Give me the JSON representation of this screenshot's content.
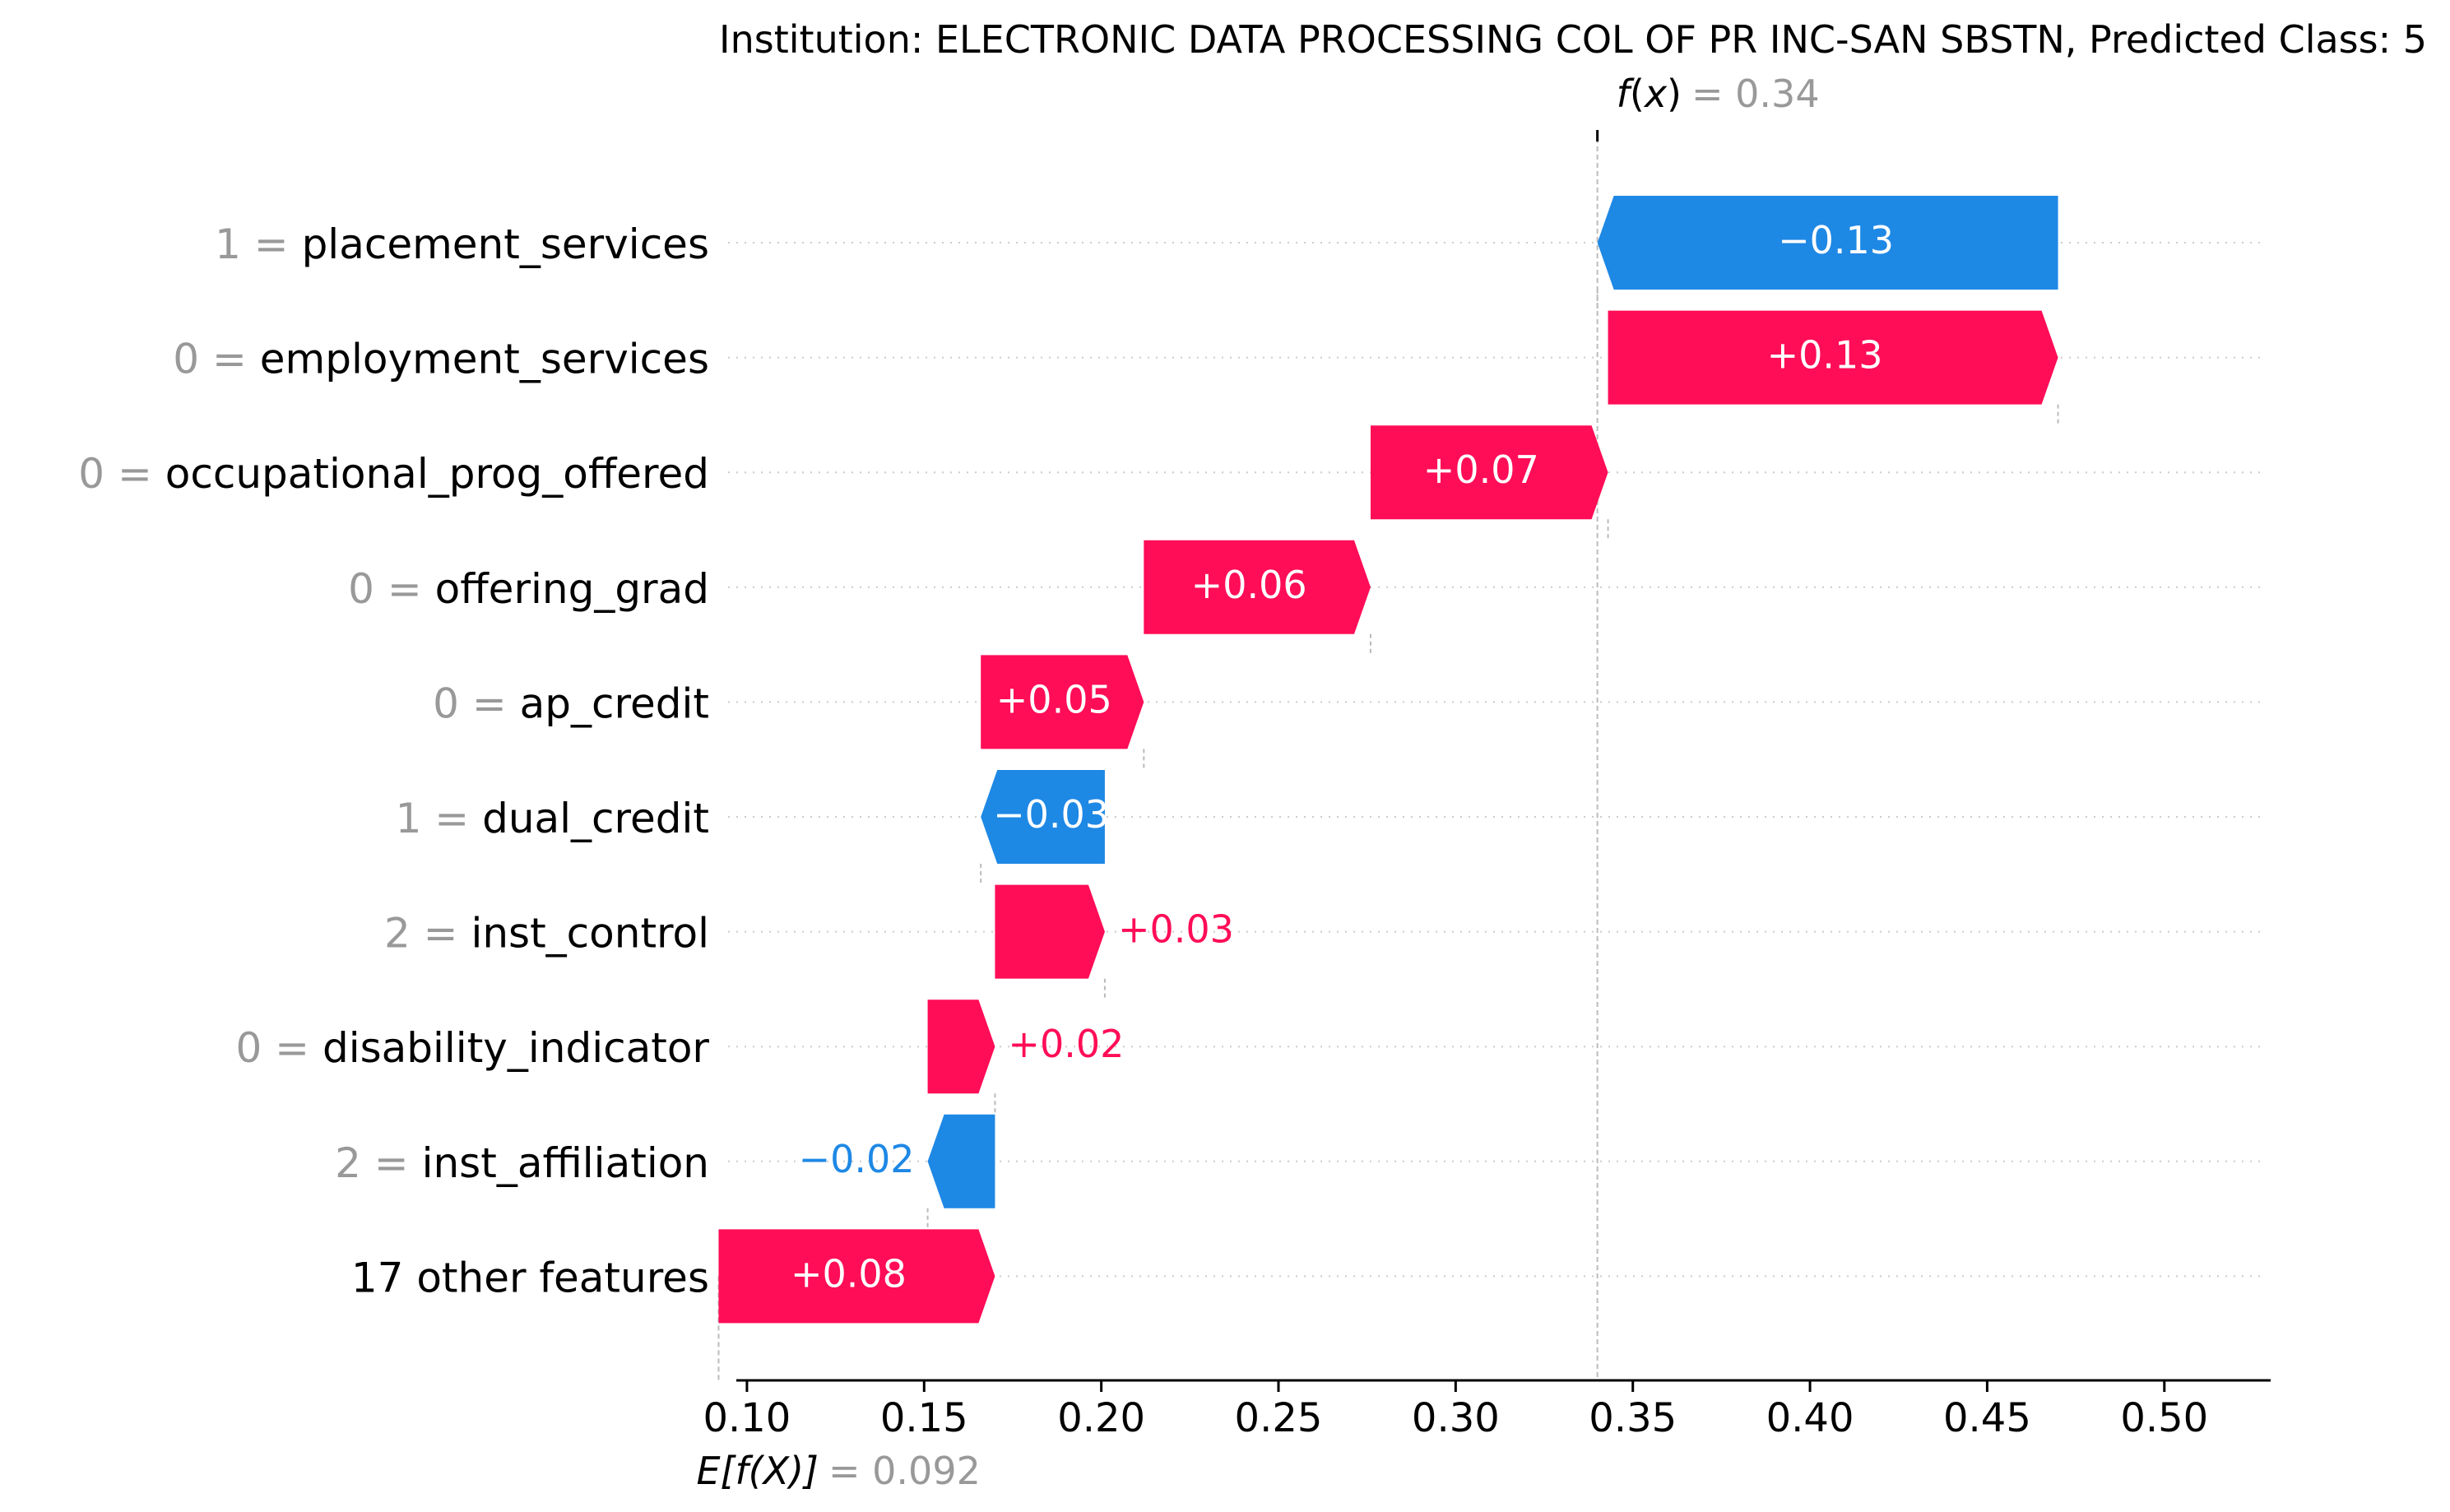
{
  "chart_data": {
    "type": "waterfall",
    "title": "Institution: ELECTRONIC DATA PROCESSING COL OF PR INC-SAN SBSTN, Predicted Class: 5",
    "output": {
      "label_f": "f",
      "label_x": "x",
      "value_text": "= 0.34",
      "value": 0.34
    },
    "base": {
      "label": "E[f(X)]",
      "value_text": "= 0.092",
      "value": 0.092
    },
    "xlim": [
      0.097,
      0.53
    ],
    "xticks": [
      0.1,
      0.15,
      0.2,
      0.25,
      0.3,
      0.35,
      0.4,
      0.45,
      0.5
    ],
    "xtick_labels": [
      "0.10",
      "0.15",
      "0.20",
      "0.25",
      "0.30",
      "0.35",
      "0.40",
      "0.45",
      "0.50"
    ],
    "features": [
      {
        "value": "1 =",
        "name": "placement_services",
        "start": 0.47,
        "end": 0.34,
        "label": "−0.13"
      },
      {
        "value": "0 =",
        "name": "employment_services",
        "start": 0.343,
        "end": 0.47,
        "label": "+0.13"
      },
      {
        "value": "0 =",
        "name": "occupational_prog_offered",
        "start": 0.276,
        "end": 0.343,
        "label": "+0.07"
      },
      {
        "value": "0 =",
        "name": "offering_grad",
        "start": 0.212,
        "end": 0.276,
        "label": "+0.06"
      },
      {
        "value": "0 =",
        "name": "ap_credit",
        "start": 0.166,
        "end": 0.212,
        "label": "+0.05"
      },
      {
        "value": "1 =",
        "name": "dual_credit",
        "start": 0.201,
        "end": 0.166,
        "label": "−0.03"
      },
      {
        "value": "2 =",
        "name": "inst_control",
        "start": 0.17,
        "end": 0.201,
        "label": "+0.03"
      },
      {
        "value": "0 =",
        "name": "disability_indicator",
        "start": 0.151,
        "end": 0.17,
        "label": "+0.02"
      },
      {
        "value": "2 =",
        "name": "inst_affiliation",
        "start": 0.17,
        "end": 0.151,
        "label": "−0.02"
      },
      {
        "value": "",
        "name": "17 other features",
        "start": 0.092,
        "end": 0.17,
        "label": "+0.08"
      }
    ],
    "colors": {
      "positive": "#ff0d57",
      "negative": "#1e88e5",
      "grey": "#999999",
      "text": "#000000"
    }
  }
}
